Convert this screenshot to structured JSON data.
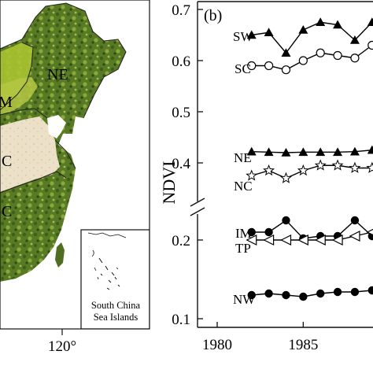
{
  "colors": {
    "sea": "#ffffff",
    "vegetation_dark": "#4a6b1f",
    "vegetation_mid": "#7f9a2f",
    "vegetation_light": "#b7c95a",
    "region_IM_fill": "#aac431",
    "desert": "#ece0c8",
    "boundary": "#222222",
    "taiwan": "#4f6e22"
  },
  "map": {
    "region_labels": [
      "NE",
      "M",
      "C",
      "C"
    ],
    "longitude_label": "120°",
    "inset_label_line1": "South China",
    "inset_label_line2": "Sea Islands"
  },
  "chart_data": {
    "type": "line",
    "panel_label": "(b)",
    "ylabel": "NDVI",
    "xlabel": "",
    "x_ticks": [
      "1980",
      "1985",
      "19"
    ],
    "xlim": [
      1980,
      1989.5
    ],
    "axis_break": true,
    "upper_segment": {
      "ylim": [
        0.34,
        0.71
      ],
      "y_ticks": [
        "0.7",
        "0.6",
        "0.5",
        "0.4"
      ]
    },
    "lower_segment": {
      "ylim": [
        0.1,
        0.25
      ],
      "y_ticks": [
        "0.2",
        "0.1"
      ]
    },
    "series": [
      {
        "name": "SW",
        "marker": "filled-triangle",
        "segment": "upper",
        "x": [
          1982,
          1983,
          1984,
          1985,
          1986,
          1987,
          1988,
          1989
        ],
        "values": [
          0.65,
          0.655,
          0.615,
          0.66,
          0.675,
          0.67,
          0.64,
          0.675
        ]
      },
      {
        "name": "SC",
        "marker": "open-circle",
        "segment": "upper",
        "x": [
          1982,
          1983,
          1984,
          1985,
          1986,
          1987,
          1988,
          1989
        ],
        "values": [
          0.59,
          0.59,
          0.582,
          0.6,
          0.615,
          0.61,
          0.605,
          0.63
        ]
      },
      {
        "name": "NE",
        "marker": "filled-triangle",
        "segment": "upper",
        "x": [
          1982,
          1983,
          1984,
          1985,
          1986,
          1987,
          1988,
          1989
        ],
        "values": [
          0.422,
          0.421,
          0.42,
          0.421,
          0.421,
          0.421,
          0.422,
          0.425
        ]
      },
      {
        "name": "NC",
        "marker": "open-star",
        "segment": "upper",
        "x": [
          1982,
          1983,
          1984,
          1985,
          1986,
          1987,
          1988,
          1989
        ],
        "values": [
          0.375,
          0.385,
          0.37,
          0.385,
          0.395,
          0.395,
          0.39,
          0.39
        ]
      },
      {
        "name": "IM",
        "marker": "filled-circle",
        "segment": "lower",
        "x": [
          1982,
          1983,
          1984,
          1985,
          1986,
          1987,
          1988,
          1989
        ],
        "values": [
          0.21,
          0.21,
          0.225,
          0.202,
          0.205,
          0.205,
          0.225,
          0.205
        ]
      },
      {
        "name": "TP",
        "marker": "open-left-triangle",
        "segment": "lower",
        "x": [
          1982,
          1983,
          1984,
          1985,
          1986,
          1987,
          1988,
          1989
        ],
        "values": [
          0.2,
          0.2,
          0.2,
          0.2,
          0.2,
          0.2,
          0.205,
          0.21
        ]
      },
      {
        "name": "NW",
        "marker": "filled-circle",
        "segment": "lower",
        "x": [
          1982,
          1983,
          1984,
          1985,
          1986,
          1987,
          1988,
          1989
        ],
        "values": [
          0.13,
          0.132,
          0.13,
          0.128,
          0.132,
          0.134,
          0.134,
          0.136
        ]
      }
    ]
  }
}
